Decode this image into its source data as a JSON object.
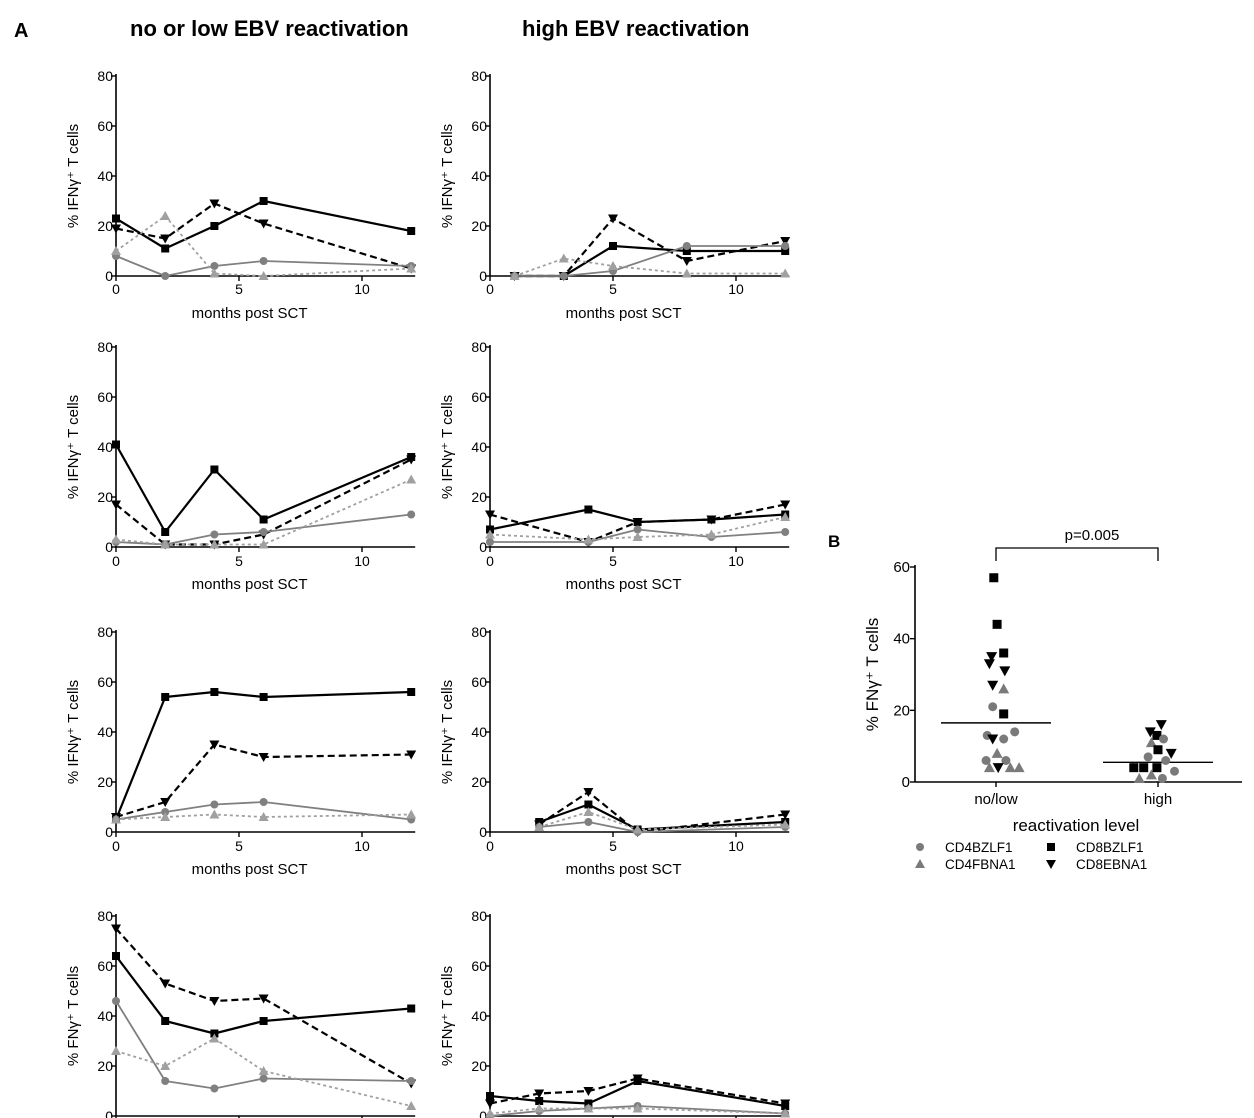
{
  "figure": {
    "panel_a_label": "A",
    "panel_b_label": "B",
    "col_titles": [
      "no or low EBV reactivation",
      "high EBV reactivation"
    ]
  },
  "colors": {
    "black": "#000000",
    "gray": "#808080",
    "lightgray": "#a0a0a0",
    "ptgray": "#7a7a7a",
    "ptblack": "#000000"
  },
  "chart_data": [
    {
      "id": "A-r1-c1",
      "type": "line",
      "ylabel": "% IFNγ⁺ T cells",
      "xlabel": "months post SCT",
      "xlim": [
        0,
        12
      ],
      "ylim": [
        0,
        80
      ],
      "xticks": [
        0,
        5,
        10
      ],
      "yticks": [
        0,
        20,
        40,
        60,
        80
      ],
      "series": [
        {
          "name": "CD8BZLF1",
          "style": "solid-black",
          "marker": "square",
          "x": [
            0,
            2,
            4,
            6,
            12
          ],
          "y": [
            23,
            11,
            20,
            30,
            18
          ]
        },
        {
          "name": "CD8EBNA1",
          "style": "dashed-black",
          "marker": "tri-down",
          "x": [
            0,
            2,
            4,
            6,
            12
          ],
          "y": [
            19,
            15,
            29,
            21,
            3
          ]
        },
        {
          "name": "CD4BZLF1",
          "style": "solid-gray",
          "marker": "circle",
          "x": [
            0,
            2,
            4,
            6,
            12
          ],
          "y": [
            8,
            0,
            4,
            6,
            4
          ]
        },
        {
          "name": "CD4EBNA1",
          "style": "dotted-gray",
          "marker": "tri-up",
          "x": [
            0,
            2,
            4,
            6,
            12
          ],
          "y": [
            10,
            24,
            1,
            0,
            3
          ]
        }
      ]
    },
    {
      "id": "A-r1-c2",
      "type": "line",
      "ylabel": "% IFNγ⁺ T cells",
      "xlabel": "months post SCT",
      "xlim": [
        0,
        12
      ],
      "ylim": [
        0,
        80
      ],
      "xticks": [
        0,
        5,
        10
      ],
      "yticks": [
        0,
        20,
        40,
        60,
        80
      ],
      "series": [
        {
          "name": "CD8BZLF1",
          "style": "solid-black",
          "marker": "square",
          "x": [
            1,
            3,
            5,
            8,
            12
          ],
          "y": [
            0,
            0,
            12,
            10,
            10
          ]
        },
        {
          "name": "CD8EBNA1",
          "style": "dashed-black",
          "marker": "tri-down",
          "x": [
            1,
            3,
            5,
            8,
            12
          ],
          "y": [
            0,
            0,
            23,
            6,
            14
          ]
        },
        {
          "name": "CD4BZLF1",
          "style": "solid-gray",
          "marker": "circle",
          "x": [
            1,
            3,
            5,
            8,
            12
          ],
          "y": [
            0,
            0,
            2,
            12,
            12
          ]
        },
        {
          "name": "CD4EBNA1",
          "style": "dotted-gray",
          "marker": "tri-up",
          "x": [
            1,
            3,
            5,
            8,
            12
          ],
          "y": [
            0,
            7,
            4,
            1,
            1
          ]
        }
      ]
    },
    {
      "id": "A-r2-c1",
      "type": "line",
      "ylabel": "% IFNγ⁺ T cells",
      "xlabel": "months post SCT",
      "xlim": [
        0,
        12
      ],
      "ylim": [
        0,
        80
      ],
      "xticks": [
        0,
        5,
        10
      ],
      "yticks": [
        0,
        20,
        40,
        60,
        80
      ],
      "series": [
        {
          "name": "CD8BZLF1",
          "style": "solid-black",
          "marker": "square",
          "x": [
            0,
            2,
            4,
            6,
            12
          ],
          "y": [
            41,
            6,
            31,
            11,
            36
          ]
        },
        {
          "name": "CD8EBNA1",
          "style": "dashed-black",
          "marker": "tri-down",
          "x": [
            0,
            2,
            4,
            6,
            12
          ],
          "y": [
            17,
            1,
            1,
            5,
            35
          ]
        },
        {
          "name": "CD4BZLF1",
          "style": "solid-gray",
          "marker": "circle",
          "x": [
            0,
            2,
            4,
            6,
            12
          ],
          "y": [
            2,
            1,
            5,
            6,
            13
          ]
        },
        {
          "name": "CD4EBNA1",
          "style": "dotted-gray",
          "marker": "tri-up",
          "x": [
            0,
            2,
            4,
            6,
            12
          ],
          "y": [
            3,
            1,
            1,
            1,
            27
          ]
        }
      ]
    },
    {
      "id": "A-r2-c2",
      "type": "line",
      "ylabel": "% IFNγ⁺ T cells",
      "xlabel": "months post SCT",
      "xlim": [
        0,
        12
      ],
      "ylim": [
        0,
        80
      ],
      "xticks": [
        0,
        5,
        10
      ],
      "yticks": [
        0,
        20,
        40,
        60,
        80
      ],
      "series": [
        {
          "name": "CD8BZLF1",
          "style": "solid-black",
          "marker": "square",
          "x": [
            0,
            4,
            6,
            9,
            12
          ],
          "y": [
            7,
            15,
            10,
            11,
            13
          ]
        },
        {
          "name": "CD8EBNA1",
          "style": "dashed-black",
          "marker": "tri-down",
          "x": [
            0,
            4,
            6,
            9,
            12
          ],
          "y": [
            13,
            2,
            10,
            11,
            17
          ]
        },
        {
          "name": "CD4BZLF1",
          "style": "solid-gray",
          "marker": "circle",
          "x": [
            0,
            4,
            6,
            9,
            12
          ],
          "y": [
            2,
            2,
            7,
            4,
            6
          ]
        },
        {
          "name": "CD4EBNA1",
          "style": "dotted-gray",
          "marker": "tri-up",
          "x": [
            0,
            4,
            6,
            9,
            12
          ],
          "y": [
            5,
            3,
            4,
            5,
            12
          ]
        }
      ]
    },
    {
      "id": "A-r3-c1",
      "type": "line",
      "ylabel": "% IFNγ⁺ T cells",
      "xlabel": "months post SCT",
      "xlim": [
        0,
        12
      ],
      "ylim": [
        0,
        80
      ],
      "xticks": [
        0,
        5,
        10
      ],
      "yticks": [
        0,
        20,
        40,
        60,
        80
      ],
      "series": [
        {
          "name": "CD8BZLF1",
          "style": "solid-black",
          "marker": "square",
          "x": [
            0,
            2,
            4,
            6,
            12
          ],
          "y": [
            5,
            54,
            56,
            54,
            56
          ]
        },
        {
          "name": "CD8EBNA1",
          "style": "dashed-black",
          "marker": "tri-down",
          "x": [
            0,
            2,
            4,
            6,
            12
          ],
          "y": [
            6,
            12,
            35,
            30,
            31
          ]
        },
        {
          "name": "CD4BZLF1",
          "style": "solid-gray",
          "marker": "circle",
          "x": [
            0,
            2,
            4,
            6,
            12
          ],
          "y": [
            5,
            8,
            11,
            12,
            5
          ]
        },
        {
          "name": "CD4EBNA1",
          "style": "dotted-gray",
          "marker": "tri-up",
          "x": [
            0,
            2,
            4,
            6,
            12
          ],
          "y": [
            5,
            6,
            7,
            6,
            7
          ]
        }
      ]
    },
    {
      "id": "A-r3-c2",
      "type": "line",
      "ylabel": "% IFNγ⁺ T cells",
      "xlabel": "months post SCT",
      "xlim": [
        0,
        12
      ],
      "ylim": [
        0,
        80
      ],
      "xticks": [
        0,
        5,
        10
      ],
      "yticks": [
        0,
        20,
        40,
        60,
        80
      ],
      "series": [
        {
          "name": "CD8BZLF1",
          "style": "solid-black",
          "marker": "square",
          "x": [
            2,
            4,
            6,
            12
          ],
          "y": [
            4,
            11,
            1,
            4
          ]
        },
        {
          "name": "CD8EBNA1",
          "style": "dashed-black",
          "marker": "tri-down",
          "x": [
            2,
            4,
            6,
            12
          ],
          "y": [
            3,
            16,
            0,
            7
          ]
        },
        {
          "name": "CD4BZLF1",
          "style": "solid-gray",
          "marker": "circle",
          "x": [
            2,
            4,
            6,
            12
          ],
          "y": [
            2,
            4,
            0,
            2
          ]
        },
        {
          "name": "CD4EBNA1",
          "style": "dotted-gray",
          "marker": "tri-up",
          "x": [
            2,
            4,
            6,
            12
          ],
          "y": [
            2,
            8,
            1,
            3
          ]
        }
      ]
    },
    {
      "id": "A-r4-c1",
      "type": "line",
      "ylabel": "% FNγ⁺ T cells",
      "xlabel": "",
      "xlim": [
        0,
        12
      ],
      "ylim": [
        0,
        80
      ],
      "xticks": [],
      "yticks": [
        0,
        20,
        40,
        60,
        80
      ],
      "series": [
        {
          "name": "CD8EBNA1",
          "style": "dashed-black",
          "marker": "tri-down",
          "x": [
            0,
            2,
            4,
            6,
            12
          ],
          "y": [
            75,
            53,
            46,
            47,
            13
          ]
        },
        {
          "name": "CD8BZLF1",
          "style": "solid-black",
          "marker": "square",
          "x": [
            0,
            2,
            4,
            6,
            12
          ],
          "y": [
            64,
            38,
            33,
            38,
            43
          ]
        },
        {
          "name": "CD4BZLF1",
          "style": "solid-gray",
          "marker": "circle",
          "x": [
            0,
            2,
            4,
            6,
            12
          ],
          "y": [
            46,
            14,
            11,
            15,
            14
          ]
        },
        {
          "name": "CD4EBNA1",
          "style": "dotted-gray",
          "marker": "tri-up",
          "x": [
            0,
            2,
            4,
            6,
            12
          ],
          "y": [
            26,
            20,
            31,
            18,
            4
          ]
        }
      ]
    },
    {
      "id": "A-r4-c2",
      "type": "line",
      "ylabel": "% FNγ⁺ T cells",
      "xlabel": "",
      "xlim": [
        0,
        12
      ],
      "ylim": [
        0,
        80
      ],
      "xticks": [],
      "yticks": [
        0,
        20,
        40,
        60,
        80
      ],
      "series": [
        {
          "name": "CD8BZLF1",
          "style": "solid-black",
          "marker": "square",
          "x": [
            0,
            2,
            4,
            6,
            12
          ],
          "y": [
            8,
            6,
            5,
            14,
            4
          ]
        },
        {
          "name": "CD8EBNA1",
          "style": "dashed-black",
          "marker": "tri-down",
          "x": [
            0,
            2,
            4,
            6,
            12
          ],
          "y": [
            5,
            9,
            10,
            15,
            5
          ]
        },
        {
          "name": "CD4BZLF1",
          "style": "solid-gray",
          "marker": "circle",
          "x": [
            0,
            2,
            4,
            6,
            12
          ],
          "y": [
            0,
            2,
            3,
            4,
            1
          ]
        },
        {
          "name": "CD4EBNA1",
          "style": "dotted-gray",
          "marker": "tri-up",
          "x": [
            0,
            2,
            4,
            6,
            12
          ],
          "y": [
            1,
            3,
            3,
            3,
            1
          ]
        }
      ]
    },
    {
      "id": "B",
      "type": "scatter",
      "ylabel": "% FNγ⁺ T cells",
      "xlabel": "reactivation level",
      "categories": [
        "no/low",
        "high"
      ],
      "ylim": [
        0,
        60
      ],
      "yticks": [
        0,
        20,
        40,
        60
      ],
      "significance": "p=0.005",
      "medians": [
        16.5,
        5.5
      ],
      "legend": [
        "CD4BZLF1",
        "CD4FBNA1",
        "CD8BZLF1",
        "CD8EBNA1"
      ],
      "points": [
        {
          "cat": 0,
          "offset": -0.02,
          "y": 57,
          "marker": "square"
        },
        {
          "cat": 0,
          "offset": 0.01,
          "y": 44,
          "marker": "square"
        },
        {
          "cat": 0,
          "offset": 0.07,
          "y": 36,
          "marker": "square"
        },
        {
          "cat": 0,
          "offset": -0.04,
          "y": 35,
          "marker": "tri-down"
        },
        {
          "cat": 0,
          "offset": -0.06,
          "y": 33,
          "marker": "tri-down"
        },
        {
          "cat": 0,
          "offset": 0.08,
          "y": 31,
          "marker": "tri-down"
        },
        {
          "cat": 0,
          "offset": -0.03,
          "y": 27,
          "marker": "tri-down"
        },
        {
          "cat": 0,
          "offset": 0.07,
          "y": 26,
          "marker": "tri-up"
        },
        {
          "cat": 0,
          "offset": -0.03,
          "y": 21,
          "marker": "circle"
        },
        {
          "cat": 0,
          "offset": 0.07,
          "y": 19,
          "marker": "square"
        },
        {
          "cat": 0,
          "offset": 0.17,
          "y": 14,
          "marker": "circle"
        },
        {
          "cat": 0,
          "offset": -0.08,
          "y": 13,
          "marker": "circle"
        },
        {
          "cat": 0,
          "offset": -0.03,
          "y": 12,
          "marker": "tri-down"
        },
        {
          "cat": 0,
          "offset": 0.07,
          "y": 12,
          "marker": "circle"
        },
        {
          "cat": 0,
          "offset": 0.01,
          "y": 8,
          "marker": "tri-up"
        },
        {
          "cat": 0,
          "offset": -0.09,
          "y": 6,
          "marker": "circle"
        },
        {
          "cat": 0,
          "offset": 0.09,
          "y": 6,
          "marker": "circle"
        },
        {
          "cat": 0,
          "offset": -0.06,
          "y": 4,
          "marker": "tri-up"
        },
        {
          "cat": 0,
          "offset": 0.02,
          "y": 4,
          "marker": "tri-down"
        },
        {
          "cat": 0,
          "offset": 0.13,
          "y": 4,
          "marker": "tri-up"
        },
        {
          "cat": 0,
          "offset": 0.21,
          "y": 4,
          "marker": "tri-up"
        },
        {
          "cat": 1,
          "offset": 0.03,
          "y": 16,
          "marker": "tri-down"
        },
        {
          "cat": 1,
          "offset": -0.07,
          "y": 14,
          "marker": "tri-down"
        },
        {
          "cat": 1,
          "offset": -0.01,
          "y": 13,
          "marker": "square"
        },
        {
          "cat": 1,
          "offset": 0.05,
          "y": 12,
          "marker": "circle"
        },
        {
          "cat": 1,
          "offset": -0.06,
          "y": 11,
          "marker": "tri-up"
        },
        {
          "cat": 1,
          "offset": 0.0,
          "y": 9,
          "marker": "square"
        },
        {
          "cat": 1,
          "offset": 0.12,
          "y": 8,
          "marker": "tri-down"
        },
        {
          "cat": 1,
          "offset": -0.09,
          "y": 7,
          "marker": "circle"
        },
        {
          "cat": 1,
          "offset": 0.07,
          "y": 6,
          "marker": "circle"
        },
        {
          "cat": 1,
          "offset": -0.22,
          "y": 4,
          "marker": "square"
        },
        {
          "cat": 1,
          "offset": -0.13,
          "y": 4,
          "marker": "square"
        },
        {
          "cat": 1,
          "offset": -0.01,
          "y": 4,
          "marker": "square"
        },
        {
          "cat": 1,
          "offset": 0.15,
          "y": 3,
          "marker": "circle"
        },
        {
          "cat": 1,
          "offset": -0.06,
          "y": 2,
          "marker": "tri-up"
        },
        {
          "cat": 1,
          "offset": 0.04,
          "y": 1,
          "marker": "circle"
        },
        {
          "cat": 1,
          "offset": -0.17,
          "y": 1,
          "marker": "tri-up"
        }
      ]
    }
  ]
}
